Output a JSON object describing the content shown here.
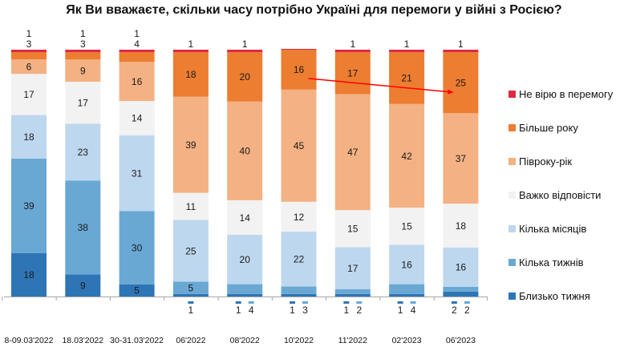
{
  "chart_data": {
    "type": "bar",
    "stacked": true,
    "title": "Як Ви вважаєте, скільки часу потрібно Україні для перемоги у війні з Росією?",
    "xlabel": "",
    "ylabel": "",
    "ylim": [
      0,
      100
    ],
    "grid": false,
    "legend_position": "right",
    "categories": [
      "8-09.03'2022",
      "18.03'2022",
      "30-31.03'2022",
      "06'2022",
      "08'2022",
      "10'2022",
      "11'2022",
      "02'2023",
      "06'2023"
    ],
    "series": [
      {
        "name": "Близько тижня",
        "color": "#2e75b6",
        "values": [
          18,
          9,
          5,
          1,
          1,
          1,
          1,
          1,
          2
        ]
      },
      {
        "name": "Кілька тижнів",
        "color": "#6aa8d4",
        "values": [
          39,
          38,
          30,
          5,
          4,
          3,
          2,
          4,
          2
        ]
      },
      {
        "name": "Кілька місяців",
        "color": "#bdd7ee",
        "values": [
          18,
          23,
          31,
          25,
          20,
          22,
          17,
          16,
          16
        ]
      },
      {
        "name": "Важко відповісти",
        "color": "#f2f2f2",
        "values": [
          17,
          17,
          14,
          11,
          14,
          12,
          15,
          15,
          18
        ]
      },
      {
        "name": "Півроку-рік",
        "color": "#f4b183",
        "values": [
          6,
          9,
          16,
          39,
          40,
          45,
          47,
          42,
          37
        ]
      },
      {
        "name": "Більше року",
        "color": "#ed7d31",
        "values": [
          3,
          3,
          4,
          18,
          20,
          16,
          17,
          21,
          25
        ]
      },
      {
        "name": "Не вірю в перемогу",
        "color": "#dc2a45",
        "values": [
          1,
          1,
          1,
          1,
          1,
          0,
          1,
          1,
          1
        ]
      }
    ],
    "legend_order": [
      "Не вірю в перемогу",
      "Більше року",
      "Півроку-рік",
      "Важко відповісти",
      "Кілька місяців",
      "Кілька тижнів",
      "Близько тижня"
    ],
    "annotations": [
      {
        "type": "arrow",
        "from_category": "10'2022",
        "to_category": "06'2023",
        "series": "Більше року",
        "color": "#ff0000"
      }
    ]
  }
}
